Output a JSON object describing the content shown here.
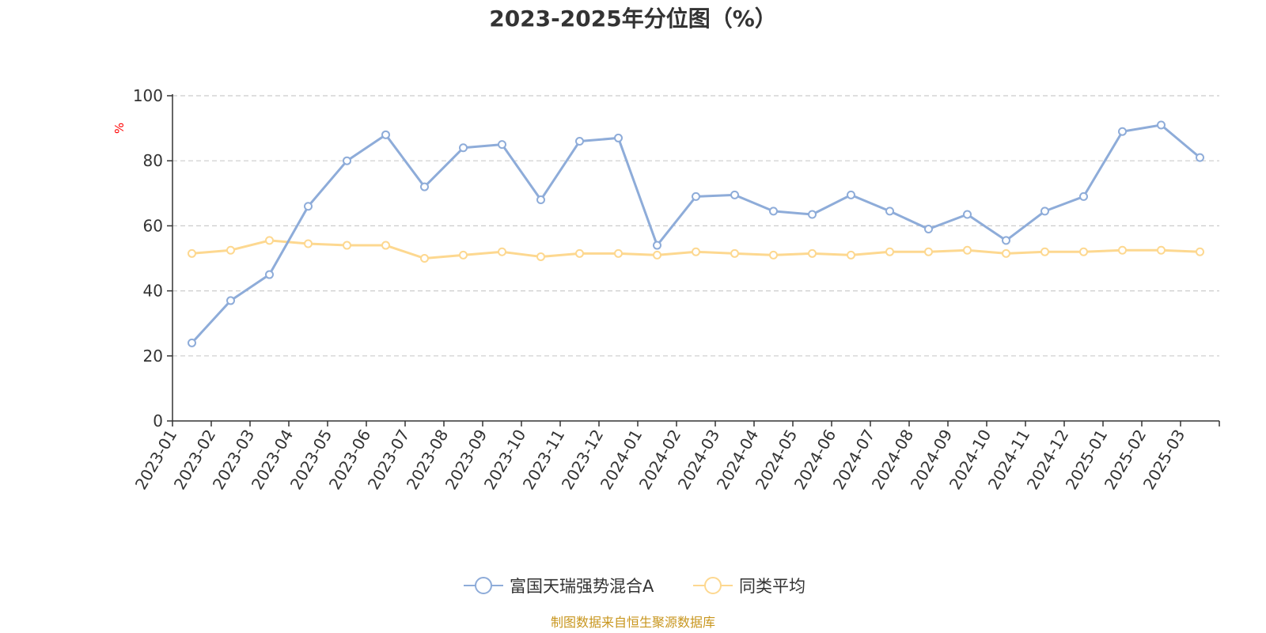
{
  "chart_data": {
    "type": "line",
    "title": "2023-2025年分位图（%）",
    "ylabel": "%",
    "xlabel": "",
    "ylim": [
      0,
      100
    ],
    "yticks": [
      0,
      20,
      40,
      60,
      80,
      100
    ],
    "grid": true,
    "legend_position": "bottom",
    "categories": [
      "2023-01",
      "2023-02",
      "2023-03",
      "2023-04",
      "2023-05",
      "2023-06",
      "2023-07",
      "2023-08",
      "2023-09",
      "2023-10",
      "2023-11",
      "2023-12",
      "2024-01",
      "2024-02",
      "2024-03",
      "2024-04",
      "2024-05",
      "2024-06",
      "2024-07",
      "2024-08",
      "2024-09",
      "2024-10",
      "2024-11",
      "2024-12",
      "2025-01",
      "2025-02",
      "2025-03"
    ],
    "series": [
      {
        "name": "富国天瑞强势混合A",
        "color": "#8eacd9",
        "values": [
          24,
          37,
          45,
          66,
          80,
          88,
          72,
          84,
          85,
          68,
          86,
          87,
          54,
          69,
          69.5,
          64.5,
          63.5,
          69.5,
          64.5,
          59,
          63.5,
          55.5,
          64.5,
          69,
          89,
          91,
          81
        ]
      },
      {
        "name": "同类平均",
        "color": "#fdd890",
        "values": [
          51.5,
          52.5,
          55.5,
          54.5,
          54,
          54,
          50,
          51,
          52,
          50.5,
          51.5,
          51.5,
          51,
          52,
          51.5,
          51,
          51.5,
          51,
          52,
          52,
          52.5,
          51.5,
          52,
          52,
          52.5,
          52.5,
          52
        ]
      }
    ]
  },
  "source": "制图数据来自恒生聚源数据库",
  "colors": {
    "axis": "#333333",
    "grid": "#cccccc",
    "unit": "#ff0000",
    "source": "#c8961e"
  }
}
